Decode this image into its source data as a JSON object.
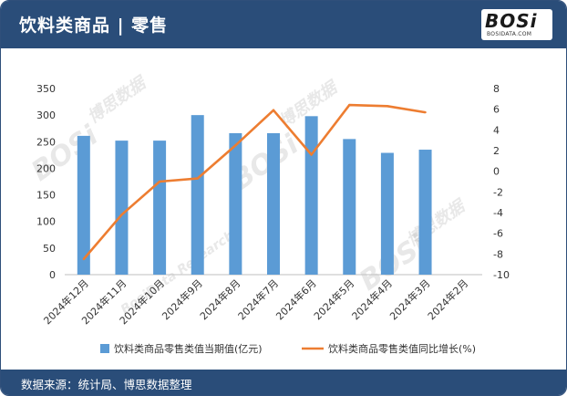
{
  "header": {
    "title": "饮料类商品 | 零售"
  },
  "logo": {
    "main": "BOSi",
    "sub": "BOSIDATA.COM"
  },
  "footer": {
    "source": "数据来源：统计局、博思数据整理"
  },
  "watermark": {
    "brand": "BOSi",
    "cn": "博思数据",
    "en": "BosiData Research"
  },
  "colors": {
    "bar": "#5b9bd5",
    "line": "#ed7d31",
    "header": "#2a4d79"
  },
  "chart_data": {
    "type": "bar",
    "categories": [
      "2024年12月",
      "2024年11月",
      "2024年10月",
      "2024年9月",
      "2024年8月",
      "2024年7月",
      "2024年6月",
      "2024年5月",
      "2024年4月",
      "2024年3月",
      "2024年2月"
    ],
    "series": [
      {
        "name": "饮料类商品零售类值当期值(亿元)",
        "type": "bar",
        "axis": "left",
        "values": [
          261,
          252,
          252,
          300,
          266,
          266,
          298,
          255,
          229,
          235,
          null
        ]
      },
      {
        "name": "饮料类商品零售类值同比增长(%)",
        "type": "line",
        "axis": "right",
        "values": [
          -8.5,
          -4.2,
          -1.0,
          -0.7,
          2.5,
          5.9,
          1.6,
          6.4,
          6.3,
          5.7,
          null
        ]
      }
    ],
    "ylim": [
      0,
      350
    ],
    "yticks": [
      "0",
      "50",
      "100",
      "150",
      "200",
      "250",
      "300",
      "350"
    ],
    "y2lim": [
      -10,
      8
    ],
    "y2ticks": [
      "-10",
      "-8",
      "-6",
      "-4",
      "-2",
      "0",
      "2",
      "4",
      "6",
      "8"
    ],
    "legend": "bottom"
  }
}
